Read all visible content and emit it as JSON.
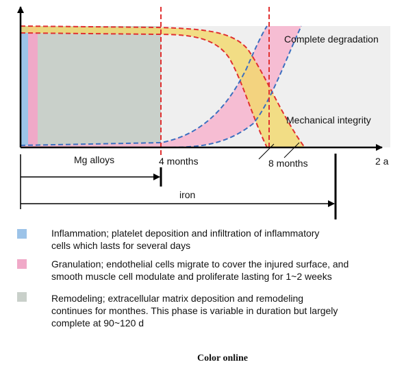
{
  "diagram": {
    "curve_labels": [
      "Complete degradation",
      "Mechanical integrity"
    ],
    "axis_labels": [
      "4 months",
      "8 months",
      "2 a"
    ],
    "spans": [
      "Mg alloys",
      "iron"
    ],
    "legend": [
      {
        "lines": [
          "Inflammation; platelet deposition and infiltration of inflammatory",
          "cells which lasts for several days"
        ]
      },
      {
        "lines": [
          "Granulation; endothelial cells migrate to cover the injured surface, and",
          "smooth muscle cell modulate and proliferate lasting for 1~2 weeks"
        ]
      },
      {
        "lines": [
          "Remodeling; extracellular matrix deposition and remodeling",
          "continues for monthes. This phase is variable in duration but largely",
          "complete at 90~120 d"
        ]
      }
    ],
    "footer": "Color online"
  }
}
